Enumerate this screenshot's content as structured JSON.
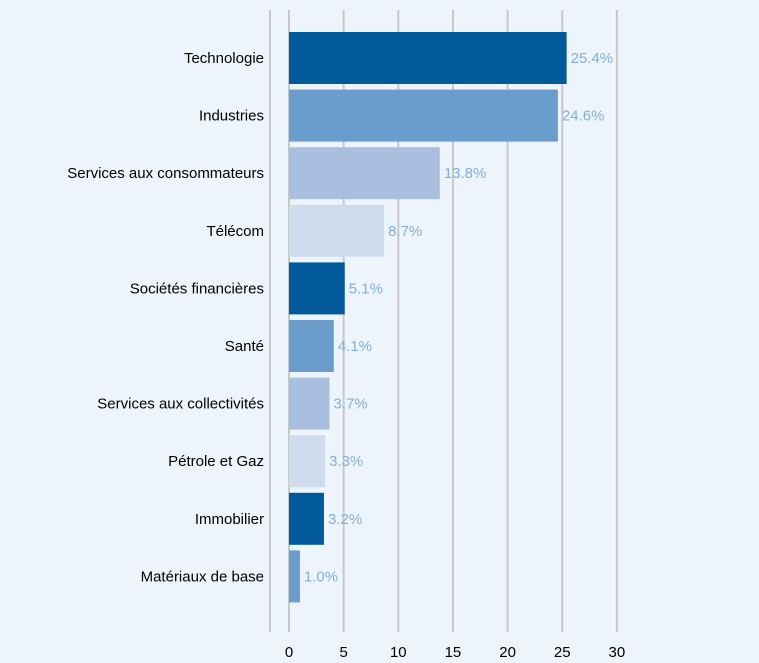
{
  "chart_data": {
    "type": "bar",
    "orientation": "horizontal",
    "categories": [
      "Technologie",
      "Industries",
      "Services aux consommateurs",
      "Télécom",
      "Sociétés financières",
      "Santé",
      "Services aux collectivités",
      "Pétrole et Gaz",
      "Immobilier",
      "Matériaux de base"
    ],
    "values": [
      25.4,
      24.6,
      13.8,
      8.7,
      5.1,
      4.1,
      3.7,
      3.3,
      3.2,
      1.0
    ],
    "value_labels": [
      "25.4%",
      "24.6%",
      "13.8%",
      "8.7%",
      "5.1%",
      "4.1%",
      "3.7%",
      "3.3%",
      "3.2%",
      "1.0%"
    ],
    "bar_colors": [
      "#005a9c",
      "#6a9ccc",
      "#a9bfe0",
      "#cfdcee",
      "#005a9c",
      "#6a9ccc",
      "#a9bfe0",
      "#cfdcee",
      "#005a9c",
      "#6a9ccc"
    ],
    "xlim": [
      0,
      30
    ],
    "xticks": [
      0,
      5,
      10,
      15,
      20,
      25,
      30
    ],
    "grid": true,
    "title": "",
    "xlabel": "",
    "ylabel": ""
  },
  "colors": {
    "background": "#eef4fb",
    "gridline": "#c8c8c8",
    "data_label": "#7fb0d8"
  }
}
